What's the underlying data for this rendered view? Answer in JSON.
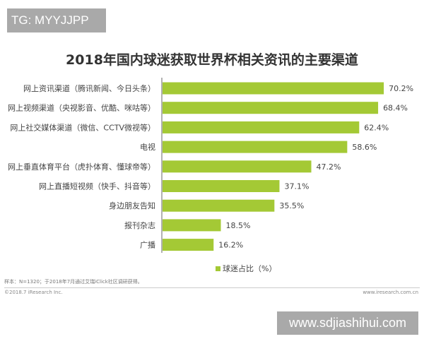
{
  "watermark_top": "TG: MYYJJPP",
  "watermark_bottom": "www.sdjiashihui.com",
  "footnote": "样本：N=1320；于2018年7月通过艾瑞iClick社区调研获得。",
  "copyright": "©2018.7 iResearch Inc.",
  "website": "www.iresearch.com.cn",
  "colors": {
    "bar": "#a4c935",
    "text": "#444444"
  },
  "chart_data": {
    "type": "bar",
    "orientation": "horizontal",
    "title": "2018年国内球迷获取世界杯相关资讯的主要渠道",
    "categories": [
      "网上资讯渠道（腾讯新闻、今日头条）",
      "网上视频渠道（央视影音、优酷、咪咕等）",
      "网上社交媒体渠道（微信、CCTV微视等）",
      "电视",
      "网上垂直体育平台（虎扑体育、懂球帝等）",
      "网上直播短视频（快手、抖音等）",
      "身边朋友告知",
      "报刊杂志",
      "广播"
    ],
    "series": [
      {
        "name": "球迷占比（%）",
        "values": [
          70.2,
          68.4,
          62.4,
          58.6,
          47.2,
          37.1,
          35.5,
          18.5,
          16.2
        ]
      }
    ],
    "data_labels": [
      "70.2%",
      "68.4%",
      "62.4%",
      "58.6%",
      "47.2%",
      "37.1%",
      "35.5%",
      "18.5%",
      "16.2%"
    ],
    "xlim": [
      0,
      75
    ],
    "grid": false,
    "legend": "bottom"
  }
}
